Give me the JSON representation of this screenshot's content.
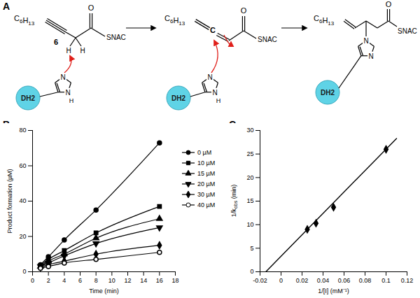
{
  "scheme": {
    "label": "A",
    "compound_label": "6",
    "chain": "C6H13",
    "oxygen": "O",
    "thioester": "SNAC",
    "hydrogen": "H",
    "carbon": "C",
    "nitrogen": "N",
    "domain": "DH2"
  },
  "chart_data": [
    {
      "type": "line",
      "title": "B",
      "x_label": "Time (min)",
      "y_label": "Product formation (µM)",
      "xlim": [
        0,
        18
      ],
      "xticks": [
        0,
        2,
        4,
        6,
        8,
        10,
        12,
        14,
        16,
        18
      ],
      "ylim": [
        0,
        80
      ],
      "yticks": [
        0,
        20,
        40,
        60,
        80
      ],
      "x": [
        1,
        2,
        4,
        8,
        16
      ],
      "legend": "right",
      "series": [
        {
          "name": "0 µM",
          "color": "#000000",
          "marker": "circle",
          "line_style": "solid",
          "values": [
            4,
            8.5,
            18,
            35,
            73
          ]
        },
        {
          "name": "10 µM",
          "color": "#000000",
          "marker": "square",
          "line_style": "solid",
          "values": [
            3.5,
            7,
            12,
            22,
            37
          ]
        },
        {
          "name": "15 µM",
          "color": "#000000",
          "marker": "triangle",
          "line_style": "solid",
          "values": [
            3,
            6,
            10,
            19,
            30
          ]
        },
        {
          "name": "20 µM",
          "color": "#000000",
          "marker": "triangle-down",
          "line_style": "solid",
          "values": [
            3,
            5,
            9,
            16,
            25
          ]
        },
        {
          "name": "30 µM",
          "color": "#000000",
          "marker": "diamond",
          "line_style": "solid",
          "values": [
            2.5,
            4,
            6,
            10,
            15
          ]
        },
        {
          "name": "40 µM",
          "color": "#000000",
          "marker": "circle-open",
          "line_style": "solid",
          "values": [
            2,
            3,
            5,
            7,
            11
          ]
        }
      ]
    },
    {
      "type": "scatter",
      "title": "C",
      "x_label": "1/[I] (mM⁻¹)",
      "y_label": "1/kobs (min)",
      "xlim": [
        -0.02,
        0.12
      ],
      "xticks": [
        -0.02,
        0,
        0.02,
        0.04,
        0.06,
        0.08,
        0.1,
        0.12
      ],
      "ylim": [
        0,
        30
      ],
      "yticks": [
        0,
        5,
        10,
        15,
        20,
        25,
        30
      ],
      "series": [
        {
          "type": "scatter",
          "color": "#000000",
          "marker": "diamond",
          "x": [
            0.025,
            0.0333,
            0.05,
            0.1
          ],
          "values": [
            9,
            10.3,
            13.7,
            26
          ]
        },
        {
          "type": "line",
          "color": "#000000",
          "line_style": "solid",
          "x": [
            -0.0145,
            0.11
          ],
          "values": [
            0,
            28.3
          ]
        }
      ]
    }
  ]
}
